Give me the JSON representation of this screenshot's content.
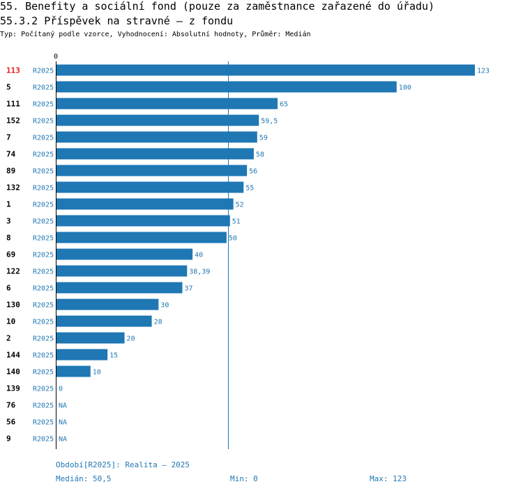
{
  "header": {
    "title": "55. Benefity a sociální fond (pouze za zaměstnance zařazené do úřadu)",
    "subtitle": "55.3.2 Příspěvek na stravné – z fondu",
    "type_line": "Typ: Počítaný podle vzorce, Vyhodnocení: Absolutní hodnoty, Průměr: Medián"
  },
  "colors": {
    "bar": "#1f77b4",
    "highlight": "#e31a1c",
    "text": "#000000"
  },
  "chart_data": {
    "type": "bar",
    "orientation": "horizontal",
    "axis_origin_label": "0",
    "xlim": [
      0,
      123
    ],
    "median": 50.5,
    "highlight_id": "113",
    "rows": [
      {
        "id": "113",
        "period": "R2025",
        "value": 123,
        "label": "123"
      },
      {
        "id": "5",
        "period": "R2025",
        "value": 100,
        "label": "100"
      },
      {
        "id": "111",
        "period": "R2025",
        "value": 65,
        "label": "65"
      },
      {
        "id": "152",
        "period": "R2025",
        "value": 59.5,
        "label": "59,5"
      },
      {
        "id": "7",
        "period": "R2025",
        "value": 59,
        "label": "59"
      },
      {
        "id": "74",
        "period": "R2025",
        "value": 58,
        "label": "58"
      },
      {
        "id": "89",
        "period": "R2025",
        "value": 56,
        "label": "56"
      },
      {
        "id": "132",
        "period": "R2025",
        "value": 55,
        "label": "55"
      },
      {
        "id": "1",
        "period": "R2025",
        "value": 52,
        "label": "52"
      },
      {
        "id": "3",
        "period": "R2025",
        "value": 51,
        "label": "51"
      },
      {
        "id": "8",
        "period": "R2025",
        "value": 50,
        "label": "50"
      },
      {
        "id": "69",
        "period": "R2025",
        "value": 40,
        "label": "40"
      },
      {
        "id": "122",
        "period": "R2025",
        "value": 38.39,
        "label": "38,39"
      },
      {
        "id": "6",
        "period": "R2025",
        "value": 37,
        "label": "37"
      },
      {
        "id": "130",
        "period": "R2025",
        "value": 30,
        "label": "30"
      },
      {
        "id": "10",
        "period": "R2025",
        "value": 28,
        "label": "28"
      },
      {
        "id": "2",
        "period": "R2025",
        "value": 20,
        "label": "20"
      },
      {
        "id": "144",
        "period": "R2025",
        "value": 15,
        "label": "15"
      },
      {
        "id": "140",
        "period": "R2025",
        "value": 10,
        "label": "10"
      },
      {
        "id": "139",
        "period": "R2025",
        "value": 0,
        "label": "0"
      },
      {
        "id": "76",
        "period": "R2025",
        "value": null,
        "label": "NA"
      },
      {
        "id": "56",
        "period": "R2025",
        "value": null,
        "label": "NA"
      },
      {
        "id": "9",
        "period": "R2025",
        "value": null,
        "label": "NA"
      }
    ]
  },
  "footer": {
    "period": "Období[R2025]: Realita – 2025",
    "median": "Medián: 50,5",
    "min": "Min: 0",
    "max": "Max: 123"
  }
}
